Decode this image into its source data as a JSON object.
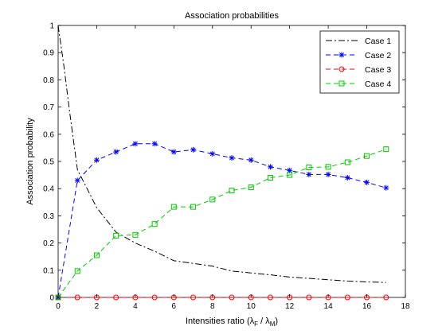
{
  "chart_data": {
    "type": "line",
    "title": "Association probabilities",
    "xlabel": {
      "prefix": "Intensities ratio (",
      "lambda_glyph": "λ",
      "sub1": "F",
      "sep": " / ",
      "sub2": "M",
      "suffix": ")"
    },
    "ylabel": "Association probability",
    "xlim": [
      0,
      18
    ],
    "ylim": [
      0,
      1
    ],
    "xticks": [
      0,
      2,
      4,
      6,
      8,
      10,
      12,
      14,
      16,
      18
    ],
    "yticks": [
      0,
      0.1,
      0.2,
      0.3,
      0.4,
      0.5,
      0.6,
      0.7,
      0.8,
      0.9,
      1
    ],
    "ytick_labels": [
      "0",
      "0.1",
      "0.2",
      "0.3",
      "0.4",
      "0.5",
      "0.6",
      "0.7",
      "0.8",
      "0.9",
      "1"
    ],
    "grid": false,
    "legend_position": "top-right",
    "x": [
      0,
      1,
      2,
      3,
      4,
      5,
      6,
      7,
      8,
      9,
      10,
      11,
      12,
      13,
      14,
      15,
      16,
      17
    ],
    "series": [
      {
        "name": "Case 1",
        "color": "#000000",
        "linestyle": "dashdot",
        "marker": "none",
        "x": [
          0,
          0.3,
          0.6,
          1,
          1.5,
          2,
          3,
          4,
          5,
          6,
          7,
          8,
          9,
          10,
          11,
          12,
          13,
          14,
          15,
          16,
          17
        ],
        "values": [
          1.0,
          0.85,
          0.68,
          0.47,
          0.4,
          0.33,
          0.24,
          0.2,
          0.17,
          0.135,
          0.125,
          0.115,
          0.097,
          0.09,
          0.083,
          0.075,
          0.07,
          0.065,
          0.06,
          0.057,
          0.055
        ]
      },
      {
        "name": "Case 2",
        "color": "#0000ff",
        "linestyle": "dashed",
        "marker": "star",
        "values": [
          0.0,
          0.43,
          0.505,
          0.535,
          0.565,
          0.565,
          0.535,
          0.543,
          0.528,
          0.513,
          0.505,
          0.48,
          0.467,
          0.452,
          0.452,
          0.44,
          0.423,
          0.403
        ]
      },
      {
        "name": "Case 3",
        "color": "#ff0000",
        "linestyle": "dashed",
        "marker": "circle",
        "values": [
          0,
          0,
          0,
          0,
          0,
          0,
          0,
          0,
          0,
          0,
          0,
          0,
          0,
          0,
          0,
          0,
          0,
          0
        ]
      },
      {
        "name": "Case 4",
        "color": "#00cc00",
        "linestyle": "dashed",
        "marker": "square",
        "values": [
          0.0,
          0.097,
          0.155,
          0.227,
          0.23,
          0.27,
          0.333,
          0.333,
          0.36,
          0.393,
          0.405,
          0.44,
          0.45,
          0.478,
          0.48,
          0.497,
          0.52,
          0.545
        ]
      }
    ]
  }
}
